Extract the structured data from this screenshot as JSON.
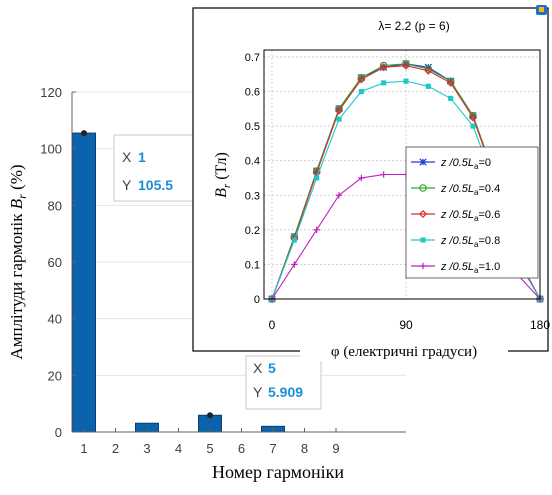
{
  "chart_data": [
    {
      "type": "bar",
      "xlabel": "Номер гармоніки",
      "ylabel_main": "Амплітуди гармонік ",
      "ylabel_var": "B",
      "ylabel_sub": "r",
      "ylabel_unit": " (%)",
      "categories": [
        "1",
        "2",
        "3",
        "4",
        "5",
        "6",
        "7",
        "8",
        "9"
      ],
      "values": [
        105.5,
        0,
        3.1,
        0,
        5.909,
        0,
        2.0,
        0,
        0
      ],
      "ylim": [
        0,
        120
      ],
      "yticks": [
        "0",
        "20",
        "40",
        "60",
        "80",
        "100",
        "120"
      ],
      "bar_color": "#0b63ad",
      "datatips": [
        {
          "x_label": "X",
          "x_value": "1",
          "y_label": "Y",
          "y_value": "105.5"
        },
        {
          "x_label": "X",
          "x_value": "5",
          "y_label": "Y",
          "y_value": "5.909"
        }
      ]
    },
    {
      "type": "line",
      "title": "λ= 2.2 (p = 6)",
      "xlabel": "φ (електричні градуси)",
      "ylabel_var": "B",
      "ylabel_sub": "r",
      "ylabel_unit": " (Тл)",
      "xlim": [
        0,
        180
      ],
      "ylim": [
        0,
        0.72
      ],
      "xticks": [
        "0",
        "90",
        "180"
      ],
      "yticks": [
        "0",
        "0.1",
        "0.2",
        "0.3",
        "0.4",
        "0.5",
        "0.6",
        "0.7"
      ],
      "grid": true,
      "legend_position": "bottom-right",
      "x": [
        0,
        15,
        30,
        45,
        60,
        75,
        90,
        105,
        120,
        135,
        150,
        165,
        180
      ],
      "series": [
        {
          "name": "z /0.5L",
          "name_sub": "a",
          "name_suffix": "=0",
          "color": "#1f3bd6",
          "marker": "star",
          "values": [
            0,
            0.18,
            0.37,
            0.55,
            0.64,
            0.67,
            0.68,
            0.67,
            0.63,
            0.53,
            0.35,
            0.12,
            0
          ]
        },
        {
          "name": "z /0.5L",
          "name_sub": "a",
          "name_suffix": "=0.4",
          "color": "#2ea62e",
          "marker": "circle",
          "values": [
            0,
            0.18,
            0.37,
            0.55,
            0.64,
            0.675,
            0.68,
            0.665,
            0.63,
            0.53,
            0.35,
            0.12,
            0
          ]
        },
        {
          "name": "z /0.5L",
          "name_sub": "a",
          "name_suffix": "=0.6",
          "color": "#d43030",
          "marker": "diamond",
          "values": [
            0,
            0.175,
            0.365,
            0.545,
            0.635,
            0.67,
            0.675,
            0.66,
            0.625,
            0.525,
            0.345,
            0.12,
            0
          ]
        },
        {
          "name": "z /0.5L",
          "name_sub": "a",
          "name_suffix": "=0.8",
          "color": "#1ec8c8",
          "marker": "square",
          "values": [
            0,
            0.17,
            0.35,
            0.52,
            0.6,
            0.625,
            0.63,
            0.615,
            0.58,
            0.5,
            0.33,
            0.11,
            0
          ]
        },
        {
          "name": "z /0.5L",
          "name_sub": "a",
          "name_suffix": "=1.0",
          "color": "#c21fc2",
          "marker": "plus",
          "values": [
            0,
            0.1,
            0.2,
            0.3,
            0.35,
            0.36,
            0.36,
            0.35,
            0.33,
            0.28,
            0.19,
            0.07,
            0
          ]
        }
      ]
    }
  ]
}
